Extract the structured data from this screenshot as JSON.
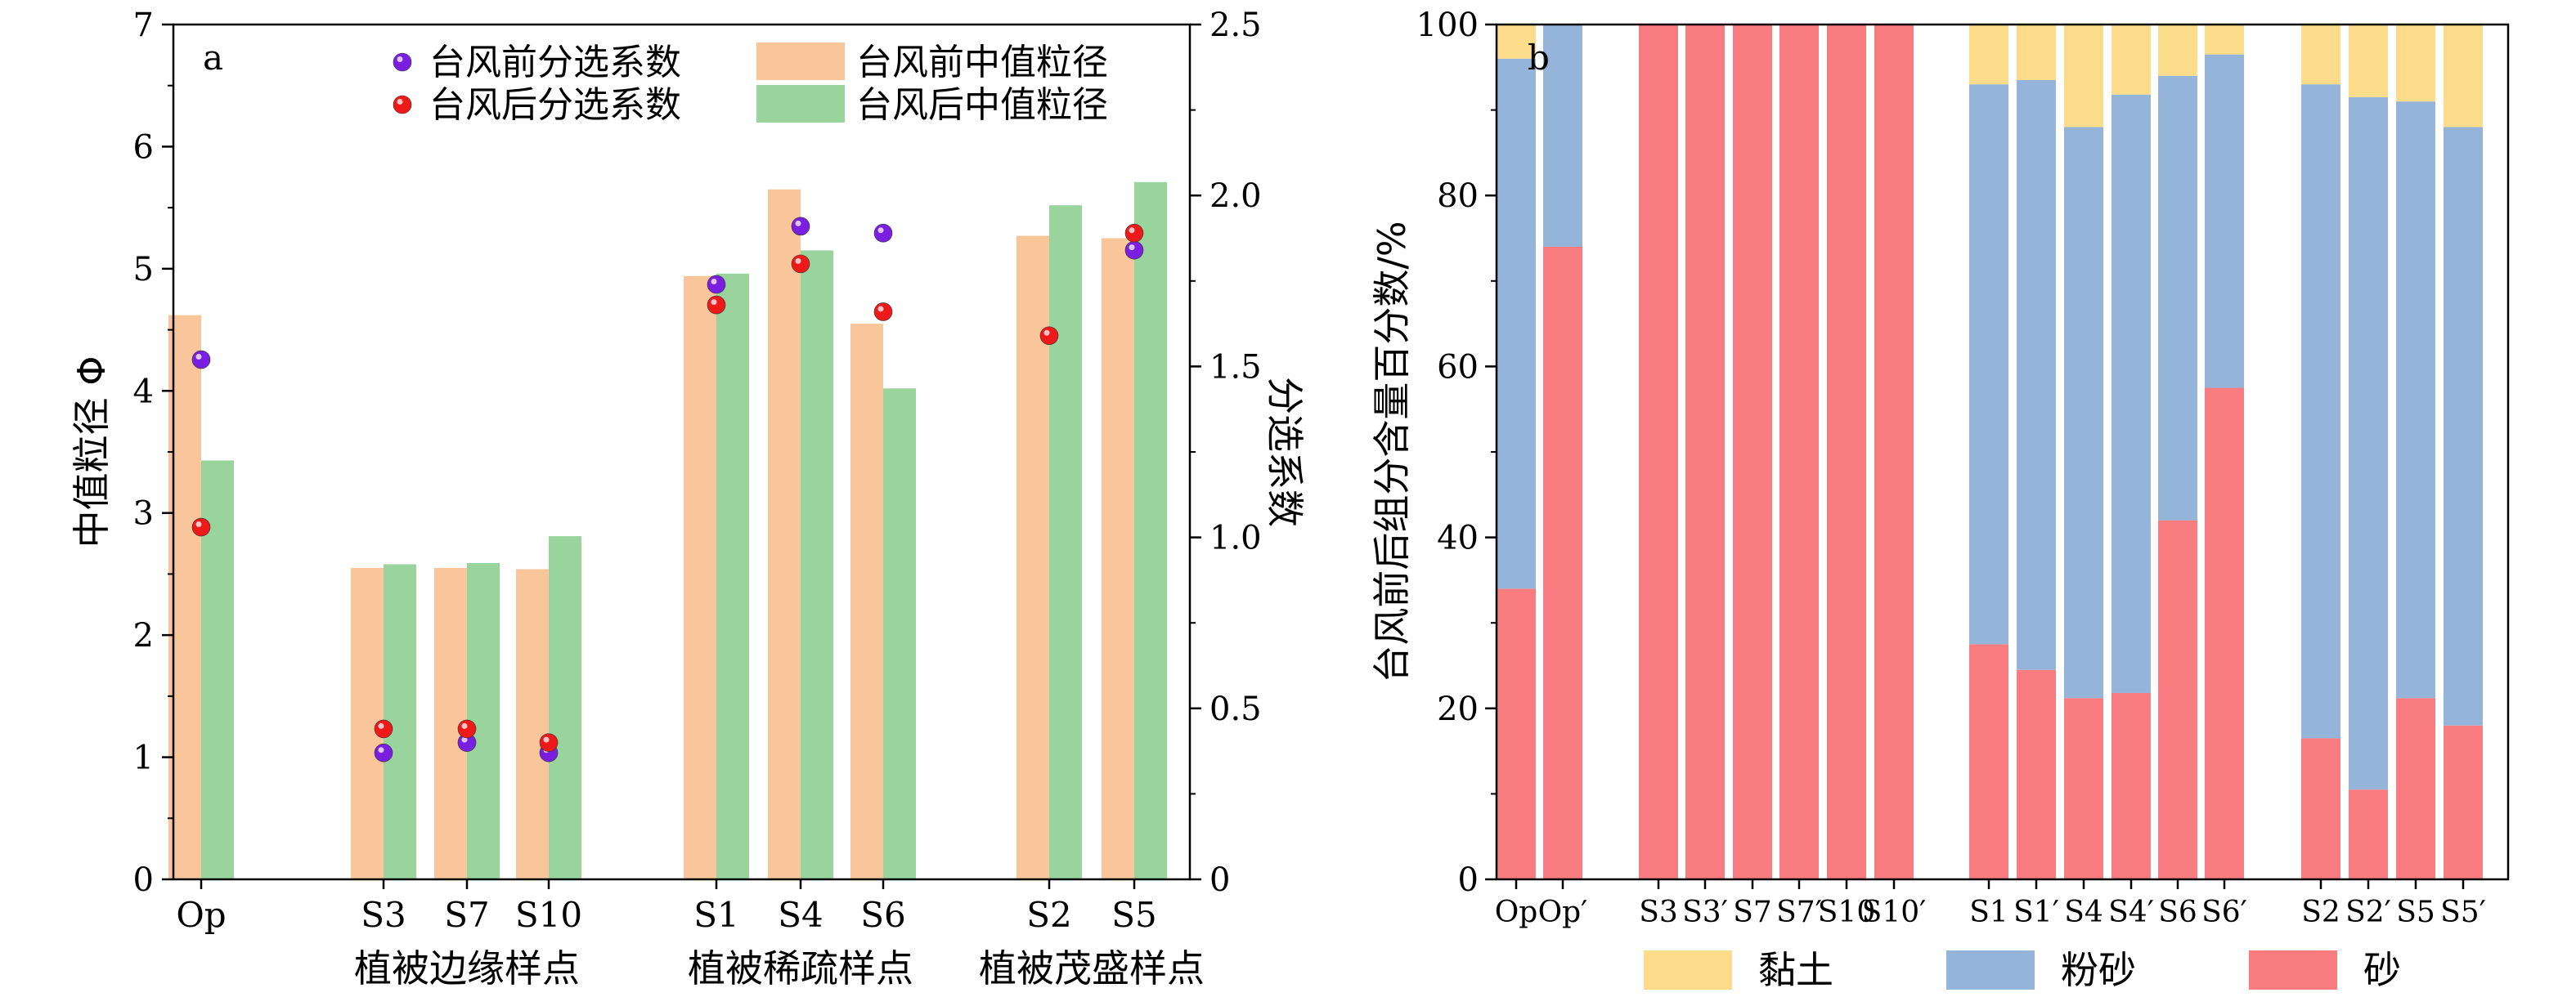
{
  "chart_data": [
    {
      "panel": "a",
      "type": "bar",
      "categories": [
        "Op",
        "S3",
        "S7",
        "S10",
        "S1",
        "S4",
        "S6",
        "S2",
        "S5"
      ],
      "groups": [
        {
          "label": "植被边缘样点",
          "categories": [
            "S3",
            "S7",
            "S10"
          ]
        },
        {
          "label": "植被稀疏样点",
          "categories": [
            "S1",
            "S4",
            "S6"
          ]
        },
        {
          "label": "植被茂盛样点",
          "categories": [
            "S2",
            "S5"
          ]
        }
      ],
      "ylabel": "中值粒径 Φ",
      "ylim": [
        0,
        7
      ],
      "yticks": [
        0,
        1,
        2,
        3,
        4,
        5,
        6,
        7
      ],
      "y2label": "分选系数",
      "y2lim": [
        0,
        2.5
      ],
      "y2ticks": [
        "0",
        "0.5",
        "1.0",
        "1.5",
        "2.0",
        "2.5"
      ],
      "bar_series": [
        {
          "name": "台风前中值粒径",
          "color": "#f8c69a",
          "values": [
            4.62,
            2.55,
            2.55,
            2.54,
            4.94,
            5.65,
            4.55,
            5.27,
            5.25
          ]
        },
        {
          "name": "台风后中值粒径",
          "color": "#98d49c",
          "values": [
            3.43,
            2.58,
            2.59,
            2.81,
            4.96,
            5.15,
            4.02,
            5.52,
            5.71
          ]
        }
      ],
      "scatter_series": [
        {
          "name": "台风前分选系数",
          "color": "#7a1fe0",
          "axis": "right",
          "values": [
            1.52,
            0.37,
            0.4,
            0.37,
            1.74,
            1.91,
            1.89,
            null,
            1.84
          ]
        },
        {
          "name": "台风后分选系数",
          "color": "#ee1a1a",
          "axis": "right",
          "values": [
            1.03,
            0.44,
            0.44,
            0.4,
            1.68,
            1.8,
            1.66,
            1.59,
            1.89
          ]
        }
      ],
      "legend_position": "top"
    },
    {
      "panel": "b",
      "type": "bar",
      "stacked": true,
      "categories": [
        "Op",
        "Op′",
        "S3",
        "S3′",
        "S7",
        "S7′",
        "S10",
        "S10′",
        "S1",
        "S1′",
        "S4",
        "S4′",
        "S6",
        "S6′",
        "S2",
        "S2′",
        "S5",
        "S5′"
      ],
      "ylabel": "台风前后组分含量百分数/%",
      "ylim": [
        0,
        100
      ],
      "yticks": [
        0,
        20,
        40,
        60,
        80,
        100
      ],
      "series": [
        {
          "name": "砂",
          "color": "#f87c80",
          "values": [
            34,
            74,
            100,
            100,
            100,
            100,
            100,
            100,
            27.5,
            24.5,
            21.2,
            21.8,
            42,
            57.5,
            16.5,
            10.5,
            21.2,
            18
          ]
        },
        {
          "name": "粉砂",
          "color": "#94b4d9",
          "values": [
            62,
            26,
            0,
            0,
            0,
            0,
            0,
            0,
            65.5,
            69,
            66.8,
            70,
            52,
            39,
            76.5,
            81,
            69.8,
            70
          ]
        },
        {
          "name": "黏土",
          "color": "#fbdc8a",
          "values": [
            4,
            0,
            0,
            0,
            0,
            0,
            0,
            0,
            7,
            6.5,
            12,
            8.2,
            6,
            3.5,
            7,
            8.5,
            9,
            12
          ]
        }
      ],
      "legend_position": "bottom"
    }
  ]
}
